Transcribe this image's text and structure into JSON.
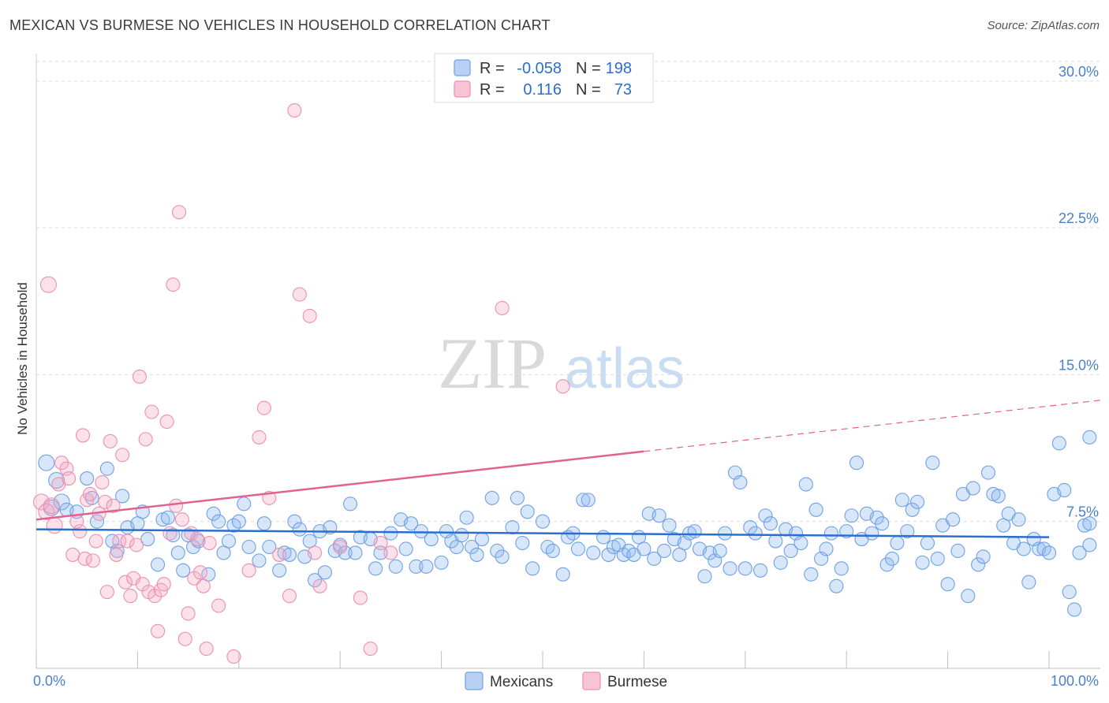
{
  "chart_data": {
    "type": "scatter",
    "title": "MEXICAN VS BURMESE NO VEHICLES IN HOUSEHOLD CORRELATION CHART",
    "source": "Source: ZipAtlas.com",
    "xlabel": "",
    "ylabel": "No Vehicles in Household",
    "xlim": [
      0,
      100
    ],
    "ylim": [
      0,
      31
    ],
    "x_tick_labels": [
      "0.0%",
      "100.0%"
    ],
    "y_ticks": [
      {
        "value": 7.5,
        "label": "7.5%"
      },
      {
        "value": 15.0,
        "label": "15.0%"
      },
      {
        "value": 22.5,
        "label": "22.5%"
      },
      {
        "value": 30.0,
        "label": "30.0%"
      }
    ],
    "grid": true,
    "watermark": "ZIPatlas",
    "legend": [
      {
        "series": "Mexicans",
        "r_label": "R =",
        "r_value": "-0.058",
        "n_label": "N =",
        "n_value": "198",
        "color": "#6fa1e6"
      },
      {
        "series": "Burmese",
        "r_label": "R =",
        "r_value": "0.116",
        "n_label": "N =",
        "n_value": "73",
        "color": "#ee8fb0"
      }
    ],
    "series": [
      {
        "name": "Mexicans",
        "color": "#6fa1e6",
        "trend": {
          "x": [
            0,
            100
          ],
          "y": [
            7.1,
            6.7
          ],
          "color": "#2a6fd0",
          "dashed_from": null
        },
        "points": [
          [
            1,
            10.5
          ],
          [
            2,
            9.6
          ],
          [
            1.5,
            8.2
          ],
          [
            2.5,
            8.5
          ],
          [
            3,
            8.1
          ],
          [
            4,
            8.0
          ],
          [
            5,
            9.7
          ],
          [
            5.5,
            8.7
          ],
          [
            6,
            7.5
          ],
          [
            7,
            10.2
          ],
          [
            7.5,
            6.5
          ],
          [
            8,
            6.0
          ],
          [
            8.5,
            8.8
          ],
          [
            9,
            7.2
          ],
          [
            10,
            7.4
          ],
          [
            10.5,
            8.0
          ],
          [
            11,
            6.6
          ],
          [
            12,
            5.3
          ],
          [
            12.5,
            7.6
          ],
          [
            13,
            7.7
          ],
          [
            13.5,
            6.8
          ],
          [
            14,
            5.9
          ],
          [
            14.5,
            5.0
          ],
          [
            15,
            6.8
          ],
          [
            15.5,
            6.2
          ],
          [
            16,
            6.5
          ],
          [
            17,
            4.8
          ],
          [
            17.5,
            7.9
          ],
          [
            18,
            7.5
          ],
          [
            18.5,
            5.9
          ],
          [
            19,
            6.5
          ],
          [
            19.5,
            7.3
          ],
          [
            20,
            7.5
          ],
          [
            20.5,
            8.4
          ],
          [
            21,
            6.2
          ],
          [
            22,
            5.5
          ],
          [
            22.5,
            7.4
          ],
          [
            23,
            6.2
          ],
          [
            24,
            5.0
          ],
          [
            24.5,
            5.9
          ],
          [
            25,
            5.8
          ],
          [
            25.5,
            7.5
          ],
          [
            26,
            7.1
          ],
          [
            26.5,
            5.7
          ],
          [
            27,
            6.5
          ],
          [
            27.5,
            4.5
          ],
          [
            28,
            7.0
          ],
          [
            28.5,
            4.9
          ],
          [
            29,
            7.2
          ],
          [
            29.5,
            6.0
          ],
          [
            30,
            6.3
          ],
          [
            30.5,
            5.9
          ],
          [
            31,
            8.4
          ],
          [
            31.5,
            5.9
          ],
          [
            32,
            6.7
          ],
          [
            33,
            6.6
          ],
          [
            33.5,
            5.1
          ],
          [
            34,
            5.9
          ],
          [
            35,
            6.9
          ],
          [
            35.5,
            5.2
          ],
          [
            36,
            7.6
          ],
          [
            36.5,
            6.1
          ],
          [
            37,
            7.4
          ],
          [
            37.5,
            5.2
          ],
          [
            38,
            7.0
          ],
          [
            38.5,
            5.2
          ],
          [
            39,
            6.6
          ],
          [
            40,
            5.4
          ],
          [
            40.5,
            7.0
          ],
          [
            41,
            6.5
          ],
          [
            41.5,
            6.2
          ],
          [
            42,
            6.8
          ],
          [
            42.5,
            7.7
          ],
          [
            43,
            6.2
          ],
          [
            43.5,
            5.8
          ],
          [
            44,
            6.6
          ],
          [
            45,
            8.7
          ],
          [
            45.5,
            6.0
          ],
          [
            46,
            5.7
          ],
          [
            47,
            7.2
          ],
          [
            47.5,
            8.7
          ],
          [
            48,
            6.4
          ],
          [
            48.5,
            8.0
          ],
          [
            49,
            5.1
          ],
          [
            50,
            7.5
          ],
          [
            50.5,
            6.2
          ],
          [
            51,
            6.0
          ],
          [
            52,
            4.8
          ],
          [
            52.5,
            6.7
          ],
          [
            53,
            6.9
          ],
          [
            53.5,
            6.1
          ],
          [
            54,
            8.6
          ],
          [
            54.5,
            8.6
          ],
          [
            55,
            5.9
          ],
          [
            56,
            6.7
          ],
          [
            56.5,
            5.8
          ],
          [
            57,
            6.2
          ],
          [
            57.5,
            6.3
          ],
          [
            58,
            5.8
          ],
          [
            58.5,
            6.0
          ],
          [
            59,
            5.8
          ],
          [
            59.5,
            6.7
          ],
          [
            60,
            6.1
          ],
          [
            60.5,
            7.9
          ],
          [
            61,
            5.6
          ],
          [
            61.5,
            7.8
          ],
          [
            62,
            6.0
          ],
          [
            62.5,
            7.3
          ],
          [
            63,
            6.6
          ],
          [
            63.5,
            5.8
          ],
          [
            64,
            6.4
          ],
          [
            64.5,
            6.9
          ],
          [
            65,
            7.0
          ],
          [
            65.5,
            6.1
          ],
          [
            66,
            4.7
          ],
          [
            66.5,
            5.9
          ],
          [
            67,
            5.5
          ],
          [
            67.5,
            6.0
          ],
          [
            68,
            6.9
          ],
          [
            68.5,
            5.1
          ],
          [
            69,
            10.0
          ],
          [
            69.5,
            9.5
          ],
          [
            70,
            5.1
          ],
          [
            70.5,
            7.2
          ],
          [
            71,
            6.9
          ],
          [
            71.5,
            5.0
          ],
          [
            72,
            7.8
          ],
          [
            72.5,
            7.4
          ],
          [
            73,
            6.5
          ],
          [
            73.5,
            5.4
          ],
          [
            74,
            7.1
          ],
          [
            74.5,
            6.0
          ],
          [
            75,
            6.9
          ],
          [
            75.5,
            6.4
          ],
          [
            76,
            9.4
          ],
          [
            76.5,
            4.8
          ],
          [
            77,
            8.1
          ],
          [
            77.5,
            5.6
          ],
          [
            78,
            6.1
          ],
          [
            78.5,
            6.9
          ],
          [
            79,
            4.2
          ],
          [
            79.5,
            5.1
          ],
          [
            80,
            7.0
          ],
          [
            80.5,
            7.8
          ],
          [
            81,
            10.5
          ],
          [
            81.5,
            6.6
          ],
          [
            82,
            7.9
          ],
          [
            82.5,
            6.9
          ],
          [
            83,
            7.7
          ],
          [
            83.5,
            7.4
          ],
          [
            84,
            5.3
          ],
          [
            84.5,
            5.6
          ],
          [
            85,
            6.4
          ],
          [
            85.5,
            8.6
          ],
          [
            86,
            7.0
          ],
          [
            86.5,
            8.1
          ],
          [
            87,
            8.5
          ],
          [
            87.5,
            5.4
          ],
          [
            88,
            6.4
          ],
          [
            88.5,
            10.5
          ],
          [
            89,
            5.6
          ],
          [
            89.5,
            7.3
          ],
          [
            90,
            4.3
          ],
          [
            90.5,
            7.6
          ],
          [
            91,
            6.0
          ],
          [
            91.5,
            8.9
          ],
          [
            92,
            3.7
          ],
          [
            92.5,
            9.2
          ],
          [
            93,
            5.3
          ],
          [
            93.5,
            5.7
          ],
          [
            94,
            10.0
          ],
          [
            94.5,
            8.9
          ],
          [
            95,
            8.8
          ],
          [
            95.5,
            7.3
          ],
          [
            96,
            7.9
          ],
          [
            96.5,
            6.4
          ],
          [
            97,
            7.6
          ],
          [
            97.5,
            6.1
          ],
          [
            98,
            4.4
          ],
          [
            98.5,
            6.6
          ],
          [
            99,
            6.1
          ],
          [
            99.5,
            6.1
          ],
          [
            100,
            5.9
          ],
          [
            100.5,
            8.9
          ],
          [
            101,
            11.5
          ],
          [
            101.5,
            9.1
          ],
          [
            102,
            3.9
          ],
          [
            102.5,
            3.0
          ],
          [
            103,
            5.9
          ],
          [
            103.5,
            7.3
          ],
          [
            104,
            7.4
          ],
          [
            104.5,
            6.3
          ],
          [
            105,
            11.8
          ]
        ]
      },
      {
        "name": "Burmese",
        "color": "#ee8fb0",
        "trend": {
          "x": [
            0,
            100
          ],
          "y": [
            7.6,
            13.4
          ],
          "color": "#e2628f",
          "dashed_from": 60
        },
        "points": [
          [
            0.5,
            8.5
          ],
          [
            1,
            8.0
          ],
          [
            1.5,
            8.3
          ],
          [
            1.2,
            19.6
          ],
          [
            1.8,
            7.3
          ],
          [
            2.2,
            9.4
          ],
          [
            2.5,
            10.5
          ],
          [
            3,
            10.2
          ],
          [
            3.2,
            9.7
          ],
          [
            3.6,
            5.8
          ],
          [
            4,
            7.5
          ],
          [
            4.3,
            7.0
          ],
          [
            4.6,
            11.9
          ],
          [
            4.8,
            5.6
          ],
          [
            5,
            8.6
          ],
          [
            5.3,
            8.9
          ],
          [
            5.6,
            5.5
          ],
          [
            5.9,
            6.5
          ],
          [
            6.2,
            7.9
          ],
          [
            6.5,
            9.5
          ],
          [
            6.8,
            8.5
          ],
          [
            7,
            3.9
          ],
          [
            7.3,
            11.6
          ],
          [
            7.6,
            8.3
          ],
          [
            7.9,
            5.8
          ],
          [
            8.2,
            6.5
          ],
          [
            8.5,
            10.9
          ],
          [
            8.8,
            4.4
          ],
          [
            9,
            6.5
          ],
          [
            9.3,
            3.7
          ],
          [
            9.6,
            4.6
          ],
          [
            9.9,
            6.3
          ],
          [
            10.2,
            14.9
          ],
          [
            10.5,
            4.3
          ],
          [
            10.8,
            11.7
          ],
          [
            11.1,
            3.9
          ],
          [
            11.4,
            13.1
          ],
          [
            11.7,
            3.7
          ],
          [
            12,
            1.9
          ],
          [
            12.3,
            4.0
          ],
          [
            12.6,
            4.3
          ],
          [
            12.9,
            12.6
          ],
          [
            13.2,
            6.9
          ],
          [
            13.5,
            19.6
          ],
          [
            13.8,
            8.3
          ],
          [
            14.1,
            23.3
          ],
          [
            14.4,
            7.6
          ],
          [
            14.7,
            1.5
          ],
          [
            15,
            2.8
          ],
          [
            15.3,
            6.9
          ],
          [
            15.6,
            4.6
          ],
          [
            15.9,
            6.6
          ],
          [
            16.2,
            4.9
          ],
          [
            16.5,
            4.2
          ],
          [
            16.8,
            1.0
          ],
          [
            17.1,
            6.4
          ],
          [
            18,
            3.2
          ],
          [
            19.5,
            0.6
          ],
          [
            21,
            5.0
          ],
          [
            22,
            11.8
          ],
          [
            22.5,
            13.3
          ],
          [
            23,
            8.7
          ],
          [
            24,
            5.8
          ],
          [
            25,
            3.7
          ],
          [
            25.5,
            28.5
          ],
          [
            26,
            19.1
          ],
          [
            27,
            18.0
          ],
          [
            27.5,
            5.9
          ],
          [
            28,
            4.2
          ],
          [
            30,
            6.2
          ],
          [
            32,
            3.6
          ],
          [
            33,
            1.0
          ],
          [
            34,
            6.4
          ],
          [
            35,
            5.9
          ],
          [
            46,
            18.4
          ],
          [
            52,
            14.4
          ]
        ]
      }
    ]
  }
}
